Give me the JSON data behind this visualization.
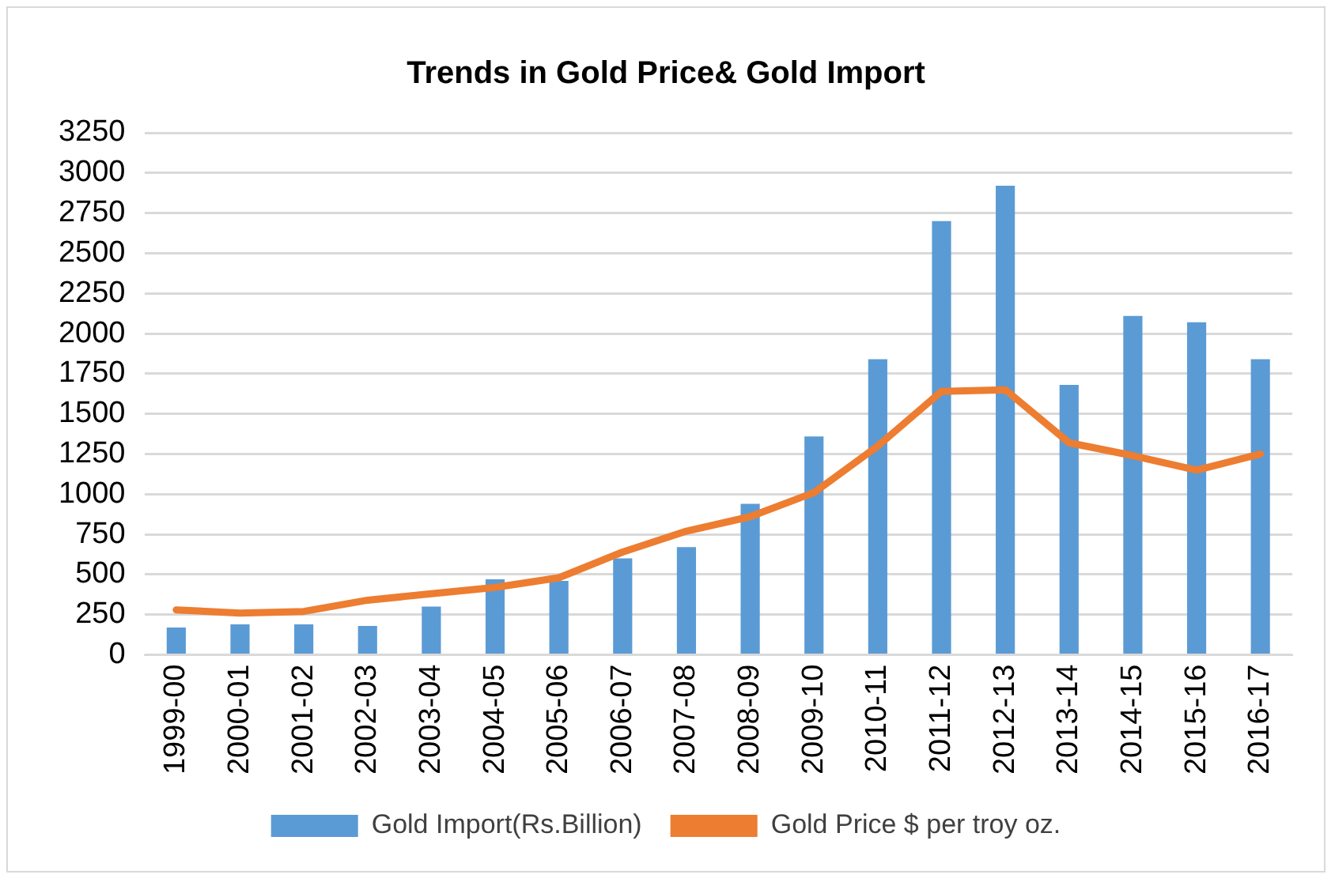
{
  "chart_data": {
    "type": "bar",
    "title": "Trends in Gold Price& Gold Import",
    "categories": [
      "1999-00",
      "2000-01",
      "2001-02",
      "2002-03",
      "2003-04",
      "2004-05",
      "2005-06",
      "2006-07",
      "2007-08",
      "2008-09",
      "2009-10",
      "2010-11",
      "2011-12",
      "2012-13",
      "2013-14",
      "2014-15",
      "2015-16",
      "2016-17"
    ],
    "series": [
      {
        "name": "Gold Import(Rs.Billion)",
        "color": "#5b9bd5",
        "values": [
          170,
          190,
          190,
          180,
          300,
          470,
          460,
          600,
          670,
          940,
          1360,
          1840,
          2700,
          2920,
          1680,
          2110,
          2070,
          1840
        ]
      },
      {
        "name": "Gold Price $ per troy oz.",
        "type": "line",
        "color": "#ed7d31",
        "values": [
          280,
          260,
          270,
          340,
          380,
          420,
          480,
          640,
          770,
          860,
          1010,
          1300,
          1640,
          1650,
          1320,
          1240,
          1150,
          1250
        ]
      }
    ],
    "ylim": [
      0,
      3250
    ],
    "yticks": [
      0,
      250,
      500,
      750,
      1000,
      1250,
      1500,
      1750,
      2000,
      2250,
      2500,
      2750,
      3000,
      3250
    ],
    "grid": "y",
    "legend": "bottom",
    "marker": "none"
  }
}
